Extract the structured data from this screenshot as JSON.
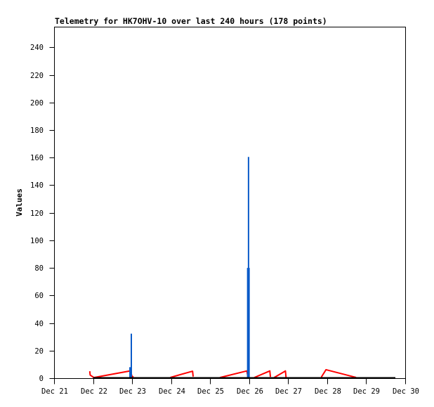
{
  "page": {
    "background_color": "#ffffff",
    "frame_color": "#000000"
  },
  "chart_data": {
    "type": "line",
    "title": "Telemetry for HK7OHV-10 over last 240 hours (178 points)",
    "xlabel": "",
    "ylabel": "Values",
    "ylim": [
      0,
      255
    ],
    "grid": false,
    "legend": "none",
    "yticks": [
      {
        "value": 0,
        "label": "0"
      },
      {
        "value": 20,
        "label": "20"
      },
      {
        "value": 40,
        "label": "40"
      },
      {
        "value": 60,
        "label": "60"
      },
      {
        "value": 80,
        "label": "80"
      },
      {
        "value": 100,
        "label": "100"
      },
      {
        "value": 120,
        "label": "120"
      },
      {
        "value": 140,
        "label": "140"
      },
      {
        "value": 160,
        "label": "160"
      },
      {
        "value": 180,
        "label": "180"
      },
      {
        "value": 200,
        "label": "200"
      },
      {
        "value": 220,
        "label": "220"
      },
      {
        "value": 240,
        "label": "240"
      }
    ],
    "xticks": [
      {
        "day": 0,
        "label": "Dec 21"
      },
      {
        "day": 1,
        "label": "Dec 22"
      },
      {
        "day": 2,
        "label": "Dec 23"
      },
      {
        "day": 3,
        "label": "Dec 24"
      },
      {
        "day": 4,
        "label": "Dec 25"
      },
      {
        "day": 5,
        "label": "Dec 26"
      },
      {
        "day": 6,
        "label": "Dec 27"
      },
      {
        "day": 7,
        "label": "Dec 28"
      },
      {
        "day": 8,
        "label": "Dec 29"
      },
      {
        "day": 9,
        "label": "Dec 30"
      }
    ],
    "x_axis_range_days": [
      0,
      9
    ],
    "series": [
      {
        "name": "red-channel",
        "type": "line",
        "color": "#ff0000",
        "width": 2,
        "segments": [
          [
            [
              0.915,
              4.8
            ],
            [
              0.925,
              2.0
            ],
            [
              1.02,
              0.2
            ],
            [
              1.93,
              4.9
            ],
            [
              1.952,
              5.1
            ],
            [
              2.0,
              1.0
            ],
            [
              2.035,
              0.7
            ]
          ],
          [
            [
              2.98,
              0.3
            ],
            [
              3.55,
              4.8
            ],
            [
              3.565,
              0.9
            ]
          ],
          [
            [
              4.25,
              0.2
            ],
            [
              4.94,
              5.0
            ],
            [
              4.965,
              1.3
            ]
          ],
          [
            [
              5.13,
              0.2
            ],
            [
              5.53,
              5.0
            ],
            [
              5.545,
              0.7
            ]
          ],
          [
            [
              5.64,
              0.2
            ],
            [
              5.93,
              5.0
            ],
            [
              5.945,
              0.5
            ]
          ],
          [
            [
              6.85,
              0.5
            ],
            [
              6.97,
              5.9
            ],
            [
              7.74,
              0.3
            ]
          ]
        ]
      },
      {
        "name": "blue-channel",
        "type": "impulses",
        "color": "#0a5ac8",
        "width": 2,
        "points": [
          [
            1.945,
            8.0
          ],
          [
            1.98,
            32.3
          ],
          [
            4.962,
            80.0
          ],
          [
            4.984,
            160.5
          ],
          [
            4.998,
            80.0
          ]
        ]
      },
      {
        "name": "black-channel",
        "type": "line",
        "color": "#000000",
        "width": 2,
        "segments": [
          [
            [
              1.0,
              0.0
            ],
            [
              8.748,
              0.0
            ]
          ]
        ]
      }
    ]
  }
}
